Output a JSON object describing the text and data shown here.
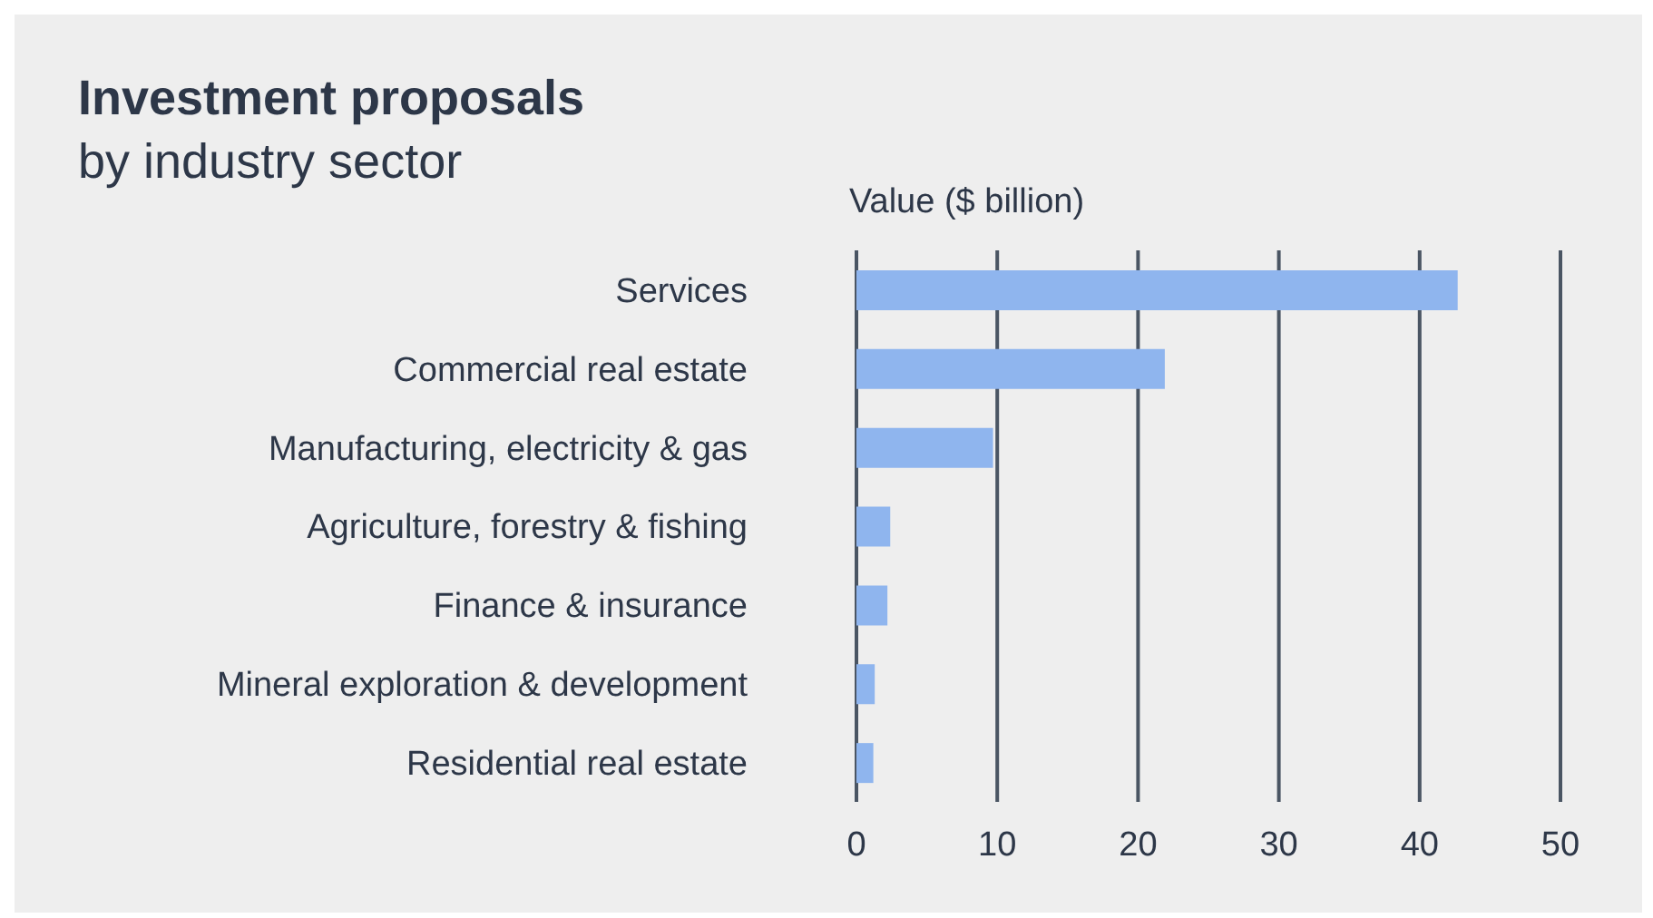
{
  "chart_data": {
    "type": "bar",
    "orientation": "horizontal",
    "title": "Investment proposals",
    "subtitle": "by industry sector",
    "xlabel": "Value ($ billion)",
    "categories": [
      "Services",
      "Commercial real estate",
      "Manufacturing, electricity & gas",
      "Agriculture, forestry & fishing",
      "Finance & insurance",
      "Mineral exploration & development",
      "Residential real estate"
    ],
    "values": [
      42.7,
      21.9,
      9.7,
      2.4,
      2.2,
      1.3,
      1.2
    ],
    "color": "#8fb5ee",
    "xlim": [
      0,
      50
    ],
    "xticks": [
      0,
      10,
      20,
      30,
      40,
      50
    ],
    "grid": "x"
  }
}
